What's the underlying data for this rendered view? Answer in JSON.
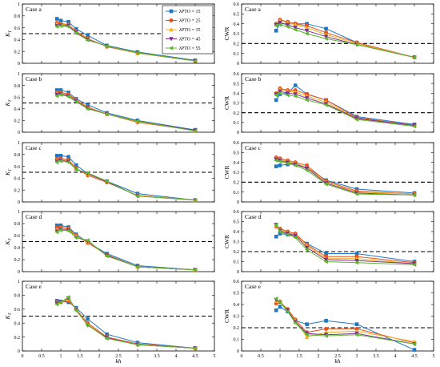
{
  "colors": {
    "series": [
      "#1f77c0",
      "#e8501a",
      "#f0b21a",
      "#7e2f8e",
      "#5cb82e"
    ],
    "threshold": "#000000",
    "axis": "#000000"
  },
  "legend": {
    "position": "top-right of first panel",
    "entries": [
      "λPTO = 15",
      "λPTO = 25",
      "λPTO = 35",
      "λPTO = 45",
      "λPTO = 55"
    ],
    "markers": [
      "square",
      "circle",
      "triangle-up",
      "triangle-down",
      "triangle-left"
    ]
  },
  "chart_data": {
    "type": "line",
    "x": [
      0.9,
      1.0,
      1.2,
      1.4,
      1.7,
      2.2,
      3.0,
      4.5
    ],
    "x_tick_labels": [
      "0",
      "0.5",
      "1",
      "1.5",
      "2",
      "2.5",
      "3",
      "3.5",
      "4",
      "4.5",
      "5"
    ],
    "xlim": [
      0,
      5
    ],
    "xlabel": "kh",
    "threshold_line": {
      "y": 0.5,
      "ylabel": "K_T",
      "style": "dashed"
    },
    "columns": [
      {
        "ylabel": "K",
        "ylabel_sub": "T",
        "ylim": [
          0,
          1
        ],
        "y_tick_labels": [
          "0",
          "0.2",
          "0.4",
          "0.6",
          "0.8",
          "1"
        ],
        "threshold": 0.5,
        "panels": [
          {
            "label": "Case a",
            "series": [
              {
                "name": "λPTO = 15",
                "values": [
                  0.75,
                  0.72,
                  0.7,
                  0.58,
                  0.47,
                  0.3,
                  0.19,
                  0.05
                ]
              },
              {
                "name": "λPTO = 25",
                "values": [
                  0.68,
                  0.67,
                  0.65,
                  0.54,
                  0.42,
                  0.28,
                  0.17,
                  0.04
                ]
              },
              {
                "name": "λPTO = 35",
                "values": [
                  0.66,
                  0.66,
                  0.64,
                  0.53,
                  0.41,
                  0.29,
                  0.17,
                  0.04
                ]
              },
              {
                "name": "λPTO = 45",
                "values": [
                  0.63,
                  0.64,
                  0.63,
                  0.52,
                  0.4,
                  0.29,
                  0.18,
                  0.04
                ]
              },
              {
                "name": "λPTO = 55",
                "values": [
                  0.62,
                  0.63,
                  0.62,
                  0.51,
                  0.39,
                  0.29,
                  0.18,
                  0.04
                ]
              }
            ]
          },
          {
            "label": "Case b",
            "series": [
              {
                "name": "λPTO = 15",
                "values": [
                  0.72,
                  0.72,
                  0.68,
                  0.57,
                  0.47,
                  0.33,
                  0.2,
                  0.04
                ]
              },
              {
                "name": "λPTO = 25",
                "values": [
                  0.68,
                  0.68,
                  0.65,
                  0.55,
                  0.43,
                  0.31,
                  0.17,
                  0.03
                ]
              },
              {
                "name": "λPTO = 35",
                "values": [
                  0.66,
                  0.66,
                  0.63,
                  0.54,
                  0.42,
                  0.31,
                  0.18,
                  0.03
                ]
              },
              {
                "name": "λPTO = 45",
                "values": [
                  0.64,
                  0.65,
                  0.62,
                  0.53,
                  0.41,
                  0.31,
                  0.19,
                  0.03
                ]
              },
              {
                "name": "λPTO = 55",
                "values": [
                  0.62,
                  0.64,
                  0.61,
                  0.52,
                  0.4,
                  0.31,
                  0.19,
                  0.02
                ]
              }
            ]
          },
          {
            "label": "Case c",
            "series": [
              {
                "name": "λPTO = 15",
                "values": [
                  0.78,
                  0.78,
                  0.76,
                  0.62,
                  0.48,
                  0.35,
                  0.14,
                  0.03
                ]
              },
              {
                "name": "λPTO = 25",
                "values": [
                  0.72,
                  0.73,
                  0.71,
                  0.57,
                  0.45,
                  0.33,
                  0.11,
                  0.03
                ]
              },
              {
                "name": "λPTO = 35",
                "values": [
                  0.7,
                  0.71,
                  0.69,
                  0.56,
                  0.47,
                  0.34,
                  0.11,
                  0.03
                ]
              },
              {
                "name": "λPTO = 45",
                "values": [
                  0.68,
                  0.7,
                  0.68,
                  0.55,
                  0.48,
                  0.34,
                  0.1,
                  0.03
                ]
              },
              {
                "name": "λPTO = 55",
                "values": [
                  0.67,
                  0.69,
                  0.67,
                  0.55,
                  0.49,
                  0.35,
                  0.1,
                  0.03
                ]
              }
            ]
          },
          {
            "label": "Case d",
            "series": [
              {
                "name": "λPTO = 15",
                "values": [
                  0.77,
                  0.77,
                  0.74,
                  0.62,
                  0.49,
                  0.3,
                  0.1,
                  0.03
                ]
              },
              {
                "name": "λPTO = 25",
                "values": [
                  0.73,
                  0.74,
                  0.72,
                  0.6,
                  0.48,
                  0.28,
                  0.08,
                  0.03
                ]
              },
              {
                "name": "λPTO = 35",
                "values": [
                  0.7,
                  0.72,
                  0.7,
                  0.59,
                  0.5,
                  0.27,
                  0.08,
                  0.03
                ]
              },
              {
                "name": "λPTO = 45",
                "values": [
                  0.67,
                  0.7,
                  0.69,
                  0.57,
                  0.51,
                  0.27,
                  0.08,
                  0.03
                ]
              },
              {
                "name": "λPTO = 55",
                "values": [
                  0.66,
                  0.69,
                  0.68,
                  0.57,
                  0.52,
                  0.26,
                  0.08,
                  0.03
                ]
              }
            ]
          },
          {
            "label": "Case e",
            "series": [
              {
                "name": "λPTO = 15",
                "values": [
                  0.72,
                  0.71,
                  0.7,
                  0.62,
                  0.46,
                  0.24,
                  0.12,
                  0.04
                ]
              },
              {
                "name": "λPTO = 25",
                "values": [
                  0.7,
                  0.7,
                  0.72,
                  0.6,
                  0.4,
                  0.2,
                  0.1,
                  0.04
                ]
              },
              {
                "name": "λPTO = 35",
                "values": [
                  0.69,
                  0.7,
                  0.74,
                  0.6,
                  0.38,
                  0.19,
                  0.09,
                  0.04
                ]
              },
              {
                "name": "λPTO = 45",
                "values": [
                  0.68,
                  0.7,
                  0.76,
                  0.59,
                  0.37,
                  0.19,
                  0.09,
                  0.04
                ]
              },
              {
                "name": "λPTO = 55",
                "values": [
                  0.67,
                  0.7,
                  0.77,
                  0.58,
                  0.37,
                  0.18,
                  0.09,
                  0.04
                ]
              }
            ]
          }
        ]
      },
      {
        "ylabel": "CWR",
        "ylabel_sub": "",
        "ylim": [
          0,
          0.6
        ],
        "y_tick_labels": [
          "0",
          "0.1",
          "0.2",
          "0.3",
          "0.4",
          "0.5",
          "0.6"
        ],
        "threshold": 0.2,
        "panels": [
          {
            "label": "Case a",
            "series": [
              {
                "name": "λPTO = 15",
                "values": [
                  0.33,
                  0.4,
                  0.4,
                  0.4,
                  0.4,
                  0.35,
                  0.21,
                  0.06
                ]
              },
              {
                "name": "λPTO = 25",
                "values": [
                  0.4,
                  0.44,
                  0.42,
                  0.4,
                  0.38,
                  0.31,
                  0.21,
                  0.06
                ]
              },
              {
                "name": "λPTO = 35",
                "values": [
                  0.4,
                  0.43,
                  0.41,
                  0.39,
                  0.36,
                  0.29,
                  0.2,
                  0.06
                ]
              },
              {
                "name": "λPTO = 45",
                "values": [
                  0.39,
                  0.41,
                  0.39,
                  0.36,
                  0.33,
                  0.27,
                  0.19,
                  0.06
                ]
              },
              {
                "name": "λPTO = 55",
                "values": [
                  0.38,
                  0.39,
                  0.37,
                  0.34,
                  0.3,
                  0.25,
                  0.19,
                  0.06
                ]
              }
            ]
          },
          {
            "label": "Case b",
            "series": [
              {
                "name": "λPTO = 15",
                "values": [
                  0.33,
                  0.39,
                  0.4,
                  0.48,
                  0.39,
                  0.33,
                  0.16,
                  0.08
                ]
              },
              {
                "name": "λPTO = 25",
                "values": [
                  0.4,
                  0.45,
                  0.43,
                  0.43,
                  0.39,
                  0.33,
                  0.15,
                  0.07
                ]
              },
              {
                "name": "λPTO = 35",
                "values": [
                  0.4,
                  0.44,
                  0.42,
                  0.41,
                  0.37,
                  0.31,
                  0.14,
                  0.07
                ]
              },
              {
                "name": "λPTO = 45",
                "values": [
                  0.39,
                  0.42,
                  0.4,
                  0.39,
                  0.35,
                  0.29,
                  0.14,
                  0.07
                ]
              },
              {
                "name": "λPTO = 55",
                "values": [
                  0.38,
                  0.4,
                  0.38,
                  0.37,
                  0.33,
                  0.28,
                  0.13,
                  0.06
                ]
              }
            ]
          },
          {
            "label": "Case c",
            "series": [
              {
                "name": "λPTO = 15",
                "values": [
                  0.36,
                  0.37,
                  0.38,
                  0.38,
                  0.35,
                  0.22,
                  0.13,
                  0.09
                ]
              },
              {
                "name": "λPTO = 25",
                "values": [
                  0.45,
                  0.44,
                  0.42,
                  0.4,
                  0.37,
                  0.21,
                  0.11,
                  0.08
                ]
              },
              {
                "name": "λPTO = 35",
                "values": [
                  0.44,
                  0.43,
                  0.41,
                  0.39,
                  0.35,
                  0.2,
                  0.1,
                  0.08
                ]
              },
              {
                "name": "λPTO = 45",
                "values": [
                  0.43,
                  0.42,
                  0.4,
                  0.38,
                  0.34,
                  0.19,
                  0.09,
                  0.07
                ]
              },
              {
                "name": "λPTO = 55",
                "values": [
                  0.42,
                  0.41,
                  0.39,
                  0.37,
                  0.32,
                  0.18,
                  0.08,
                  0.07
                ]
              }
            ]
          },
          {
            "label": "Case d",
            "series": [
              {
                "name": "λPTO = 15",
                "values": [
                  0.35,
                  0.38,
                  0.37,
                  0.36,
                  0.28,
                  0.18,
                  0.18,
                  0.1
                ]
              },
              {
                "name": "λPTO = 25",
                "values": [
                  0.45,
                  0.43,
                  0.4,
                  0.38,
                  0.27,
                  0.15,
                  0.15,
                  0.09
                ]
              },
              {
                "name": "λPTO = 35",
                "values": [
                  0.46,
                  0.42,
                  0.39,
                  0.37,
                  0.26,
                  0.13,
                  0.13,
                  0.08
                ]
              },
              {
                "name": "λPTO = 45",
                "values": [
                  0.47,
                  0.41,
                  0.38,
                  0.36,
                  0.24,
                  0.12,
                  0.11,
                  0.08
                ]
              },
              {
                "name": "λPTO = 55",
                "values": [
                  0.47,
                  0.4,
                  0.37,
                  0.34,
                  0.22,
                  0.1,
                  0.09,
                  0.07
                ]
              }
            ]
          },
          {
            "label": "Case e",
            "series": [
              {
                "name": "λPTO = 15",
                "values": [
                  0.35,
                  0.38,
                  0.34,
                  0.26,
                  0.23,
                  0.26,
                  0.23,
                  0.01
                ]
              },
              {
                "name": "λPTO = 25",
                "values": [
                  0.41,
                  0.42,
                  0.36,
                  0.27,
                  0.16,
                  0.19,
                  0.19,
                  0.07
                ]
              },
              {
                "name": "λPTO = 35",
                "values": [
                  0.43,
                  0.43,
                  0.35,
                  0.26,
                  0.12,
                  0.16,
                  0.17,
                  0.08
                ]
              },
              {
                "name": "λPTO = 45",
                "values": [
                  0.44,
                  0.42,
                  0.35,
                  0.25,
                  0.15,
                  0.14,
                  0.15,
                  0.06
                ]
              },
              {
                "name": "λPTO = 55",
                "values": [
                  0.45,
                  0.42,
                  0.34,
                  0.24,
                  0.14,
                  0.13,
                  0.14,
                  0.06
                ]
              }
            ]
          }
        ]
      }
    ]
  }
}
